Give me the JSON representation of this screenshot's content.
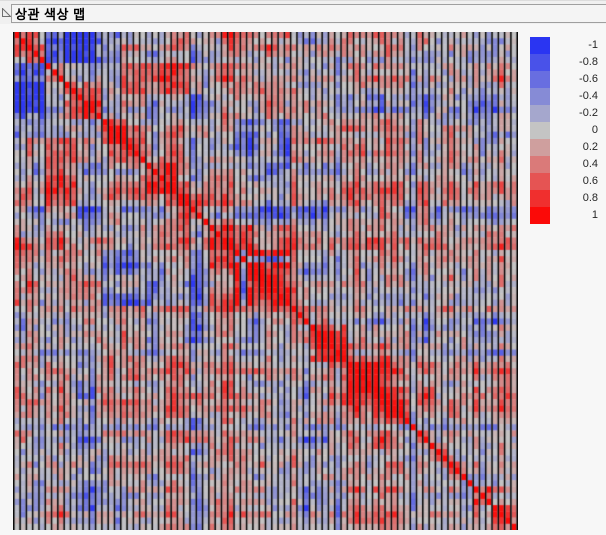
{
  "header": {
    "title": "상관 색상 맵",
    "disclosure_icon": "triangle-expanded",
    "colors": {
      "box_border": "#9f9f9f",
      "box_bg": "#f4f4f4",
      "strip_bg": "#f0f0f0"
    }
  },
  "chart_data": {
    "type": "heatmap",
    "title": "상관 색상 맵",
    "matrix_size": 80,
    "value_range": [
      -1,
      1
    ],
    "diagonal_value": 1,
    "grid": {
      "orientation": "vertical-only",
      "line_color": "#000000"
    },
    "colorscale": {
      "negative_max": "#2a35f2",
      "neutral": "#c4c4c4",
      "positive_max": "#fb0a0a",
      "negative_rgb": [
        42,
        53,
        242
      ],
      "neutral_rgb": [
        196,
        196,
        196
      ],
      "positive_rgb": [
        251,
        10,
        8
      ]
    },
    "legend": {
      "position": "right",
      "tick_values": [
        -1,
        -0.8,
        -0.6,
        -0.4,
        -0.2,
        0,
        0.2,
        0.4,
        0.6,
        0.8,
        1
      ],
      "tick_labels": [
        "-1",
        "-0.8",
        "-0.6",
        "-0.4",
        "-0.2",
        "0",
        "0.2",
        "0.4",
        "0.6",
        "0.8",
        "1"
      ]
    },
    "generator": {
      "seed": 20240613,
      "base_dims": 4,
      "smooth": 0.55,
      "base_amp": 0.85,
      "factor_scale": 1.15,
      "bias_smooth": 0.5,
      "bias_amp": 0.4,
      "noise": 0.45,
      "clamp": 0.97,
      "bias_overrides": [
        {
          "index": 33,
          "value": 0.4
        },
        {
          "index": 34,
          "value": 0.35
        },
        {
          "index": 44,
          "value": 0.3
        },
        {
          "index": 63,
          "value": -0.3
        },
        {
          "index": 28,
          "value": -0.3
        },
        {
          "index": 12,
          "value": -0.25
        }
      ]
    },
    "groups": [
      {
        "range": [
          0,
          4
        ],
        "load": 0.7
      },
      {
        "range": [
          8,
          13
        ],
        "load": 0.85
      },
      {
        "range": [
          14,
          17
        ],
        "load": 0.75
      },
      {
        "range": [
          21,
          25
        ],
        "load": 0.8
      },
      {
        "range": [
          26,
          29
        ],
        "load": 0.65
      },
      {
        "range": [
          35,
          43
        ],
        "load": 0.95,
        "member_overrides": {
          "36": -0.8
        }
      },
      {
        "range": [
          47,
          52
        ],
        "load": 0.85
      },
      {
        "range": [
          53,
          57
        ],
        "load": 0.75
      },
      {
        "range": [
          59,
          62
        ],
        "load": 0.65
      },
      {
        "range": [
          66,
          68
        ],
        "load": 0.7
      },
      {
        "range": [
          69,
          71
        ],
        "load": 0.6
      },
      {
        "range": [
          73,
          75
        ],
        "load": 0.8
      },
      {
        "range": [
          76,
          79
        ],
        "load": 0.65
      }
    ],
    "cross_links": [
      {
        "rows": [
          5,
          12
        ],
        "cols": [
          0,
          4
        ],
        "value": -0.55
      },
      {
        "rows": [
          0,
          4
        ],
        "cols": [
          8,
          16
        ],
        "value": -0.45
      },
      {
        "rows": [
          5,
          9
        ],
        "cols": [
          17,
          29
        ],
        "value": 0.5
      },
      {
        "rows": [
          35,
          43
        ],
        "cols": [
          14,
          30
        ],
        "value": -0.35
      },
      {
        "rows": [
          0,
          3
        ],
        "cols": [
          34,
          43
        ],
        "value": 0.4
      },
      {
        "rows": [
          8,
          13
        ],
        "cols": [
          35,
          43
        ],
        "value": 0.35
      }
    ]
  }
}
